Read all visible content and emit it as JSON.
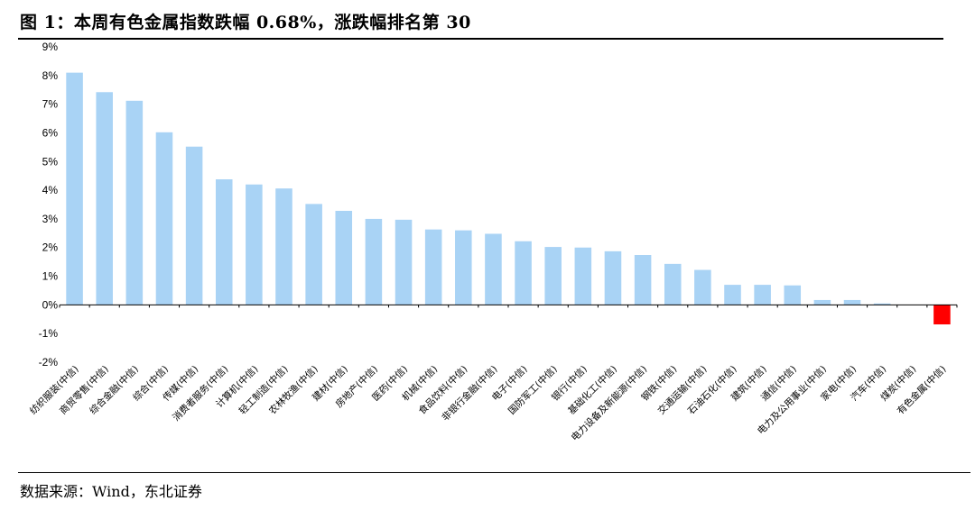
{
  "header": {
    "title": "图 1：本周有色金属指数跌幅 0.68%，涨跌幅排名第 30"
  },
  "footer": {
    "source": "数据来源：Wind，东北证券"
  },
  "colors": {
    "bar": "#a9d3f5",
    "highlight": "#ff0000",
    "axis": "#000000"
  },
  "chart_data": {
    "type": "bar",
    "title": "",
    "xlabel": "",
    "ylabel": "",
    "ylim": [
      -2,
      9
    ],
    "yticks": [
      9,
      8,
      7,
      6,
      5,
      4,
      3,
      2,
      1,
      0,
      -1,
      -2
    ],
    "ytick_suffix": "%",
    "grid": false,
    "highlight_category": "有色金属(中信)",
    "categories": [
      "纺织服装(中信)",
      "商贸零售(中信)",
      "综合金融(中信)",
      "综合(中信)",
      "传媒(中信)",
      "消费者服务(中信)",
      "计算机(中信)",
      "轻工制造(中信)",
      "农林牧渔(中信)",
      "建材(中信)",
      "房地产(中信)",
      "医药(中信)",
      "机械(中信)",
      "食品饮料(中信)",
      "非银行金融(中信)",
      "电子(中信)",
      "国防军工(中信)",
      "银行(中信)",
      "基础化工(中信)",
      "电力设备及新能源(中信)",
      "钢铁(中信)",
      "交通运输(中信)",
      "石油石化(中信)",
      "建筑(中信)",
      "通信(中信)",
      "电力及公用事业(中信)",
      "家电(中信)",
      "汽车(中信)",
      "煤炭(中信)",
      "有色金属(中信)"
    ],
    "values": [
      8.1,
      7.42,
      7.12,
      6.02,
      5.52,
      4.38,
      4.2,
      4.06,
      3.52,
      3.28,
      3.0,
      2.97,
      2.63,
      2.6,
      2.48,
      2.22,
      2.02,
      2.0,
      1.87,
      1.74,
      1.43,
      1.22,
      0.7,
      0.7,
      0.68,
      0.17,
      0.17,
      0.05,
      0.0,
      -0.68
    ]
  }
}
